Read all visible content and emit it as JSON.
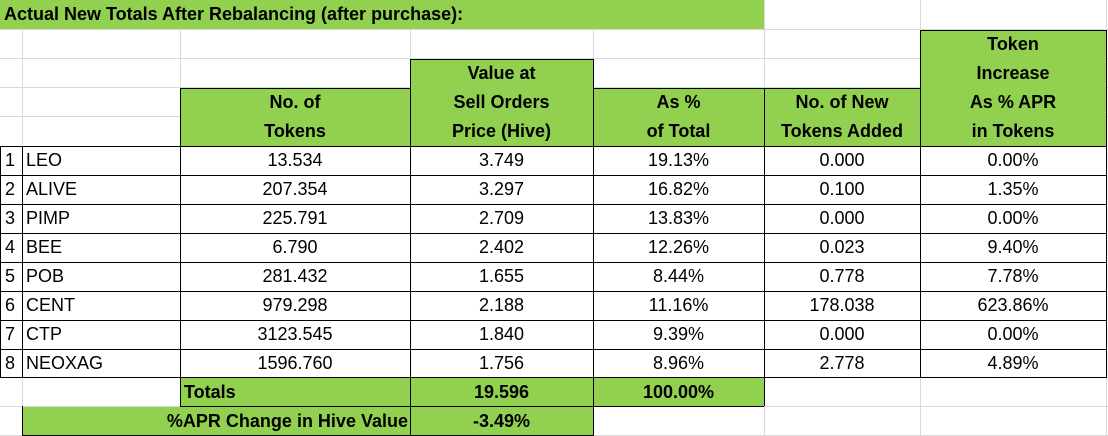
{
  "title": "Actual New Totals After Rebalancing (after purchase):",
  "headers": {
    "tokens": [
      "No. of",
      "Tokens"
    ],
    "value": [
      "Value at",
      "Sell Orders",
      "Price (Hive)"
    ],
    "pct": [
      "As %",
      "of Total"
    ],
    "new_tokens": [
      "No. of New",
      "Tokens Added"
    ],
    "apr": [
      "Token",
      "Increase",
      "As % APR",
      "in Tokens"
    ]
  },
  "rows": [
    {
      "num": "1",
      "name": "LEO",
      "tokens": "13.534",
      "value": "3.749",
      "pct": "19.13%",
      "added": "0.000",
      "apr": "0.00%"
    },
    {
      "num": "2",
      "name": "ALIVE",
      "tokens": "207.354",
      "value": "3.297",
      "pct": "16.82%",
      "added": "0.100",
      "apr": "1.35%"
    },
    {
      "num": "3",
      "name": "PIMP",
      "tokens": "225.791",
      "value": "2.709",
      "pct": "13.83%",
      "added": "0.000",
      "apr": "0.00%"
    },
    {
      "num": "4",
      "name": "BEE",
      "tokens": "6.790",
      "value": "2.402",
      "pct": "12.26%",
      "added": "0.023",
      "apr": "9.40%"
    },
    {
      "num": "5",
      "name": "POB",
      "tokens": "281.432",
      "value": "1.655",
      "pct": "8.44%",
      "added": "0.778",
      "apr": "7.78%"
    },
    {
      "num": "6",
      "name": "CENT",
      "tokens": "979.298",
      "value": "2.188",
      "pct": "11.16%",
      "added": "178.038",
      "apr": "623.86%"
    },
    {
      "num": "7",
      "name": "CTP",
      "tokens": "3123.545",
      "value": "1.840",
      "pct": "9.39%",
      "added": "0.000",
      "apr": "0.00%"
    },
    {
      "num": "8",
      "name": "NEOXAG",
      "tokens": "1596.760",
      "value": "1.756",
      "pct": "8.96%",
      "added": "2.778",
      "apr": "4.89%"
    }
  ],
  "totals": {
    "label": "Totals",
    "value": "19.596",
    "pct": "100.00%"
  },
  "apr_change": {
    "label": "%APR Change in Hive Value",
    "value": "-3.49%"
  },
  "colors": {
    "green": "#92d050",
    "gridline": "#d9d9d9",
    "border": "#000000"
  }
}
